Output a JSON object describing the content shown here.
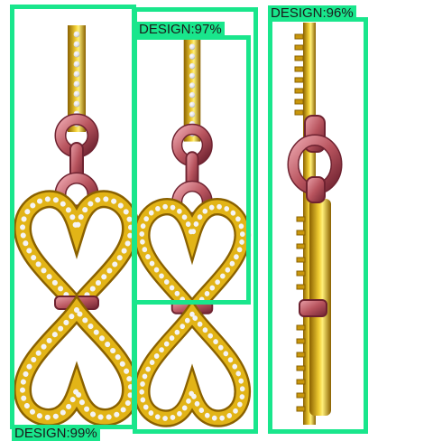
{
  "colors": {
    "box": "#19e68c",
    "gold": "#d9a400",
    "gold_dark": "#8a6100",
    "gold_light": "#fff07a",
    "rose": "#b8545e",
    "rose_dark": "#6e2230",
    "rose_light": "#eaa2aa",
    "stone": "#f4f4f6"
  },
  "detections": [
    {
      "label": "DESIGN:97%"
    },
    {
      "label": "DESIGN:96%"
    },
    {
      "label": "DESIGN:99%"
    }
  ]
}
